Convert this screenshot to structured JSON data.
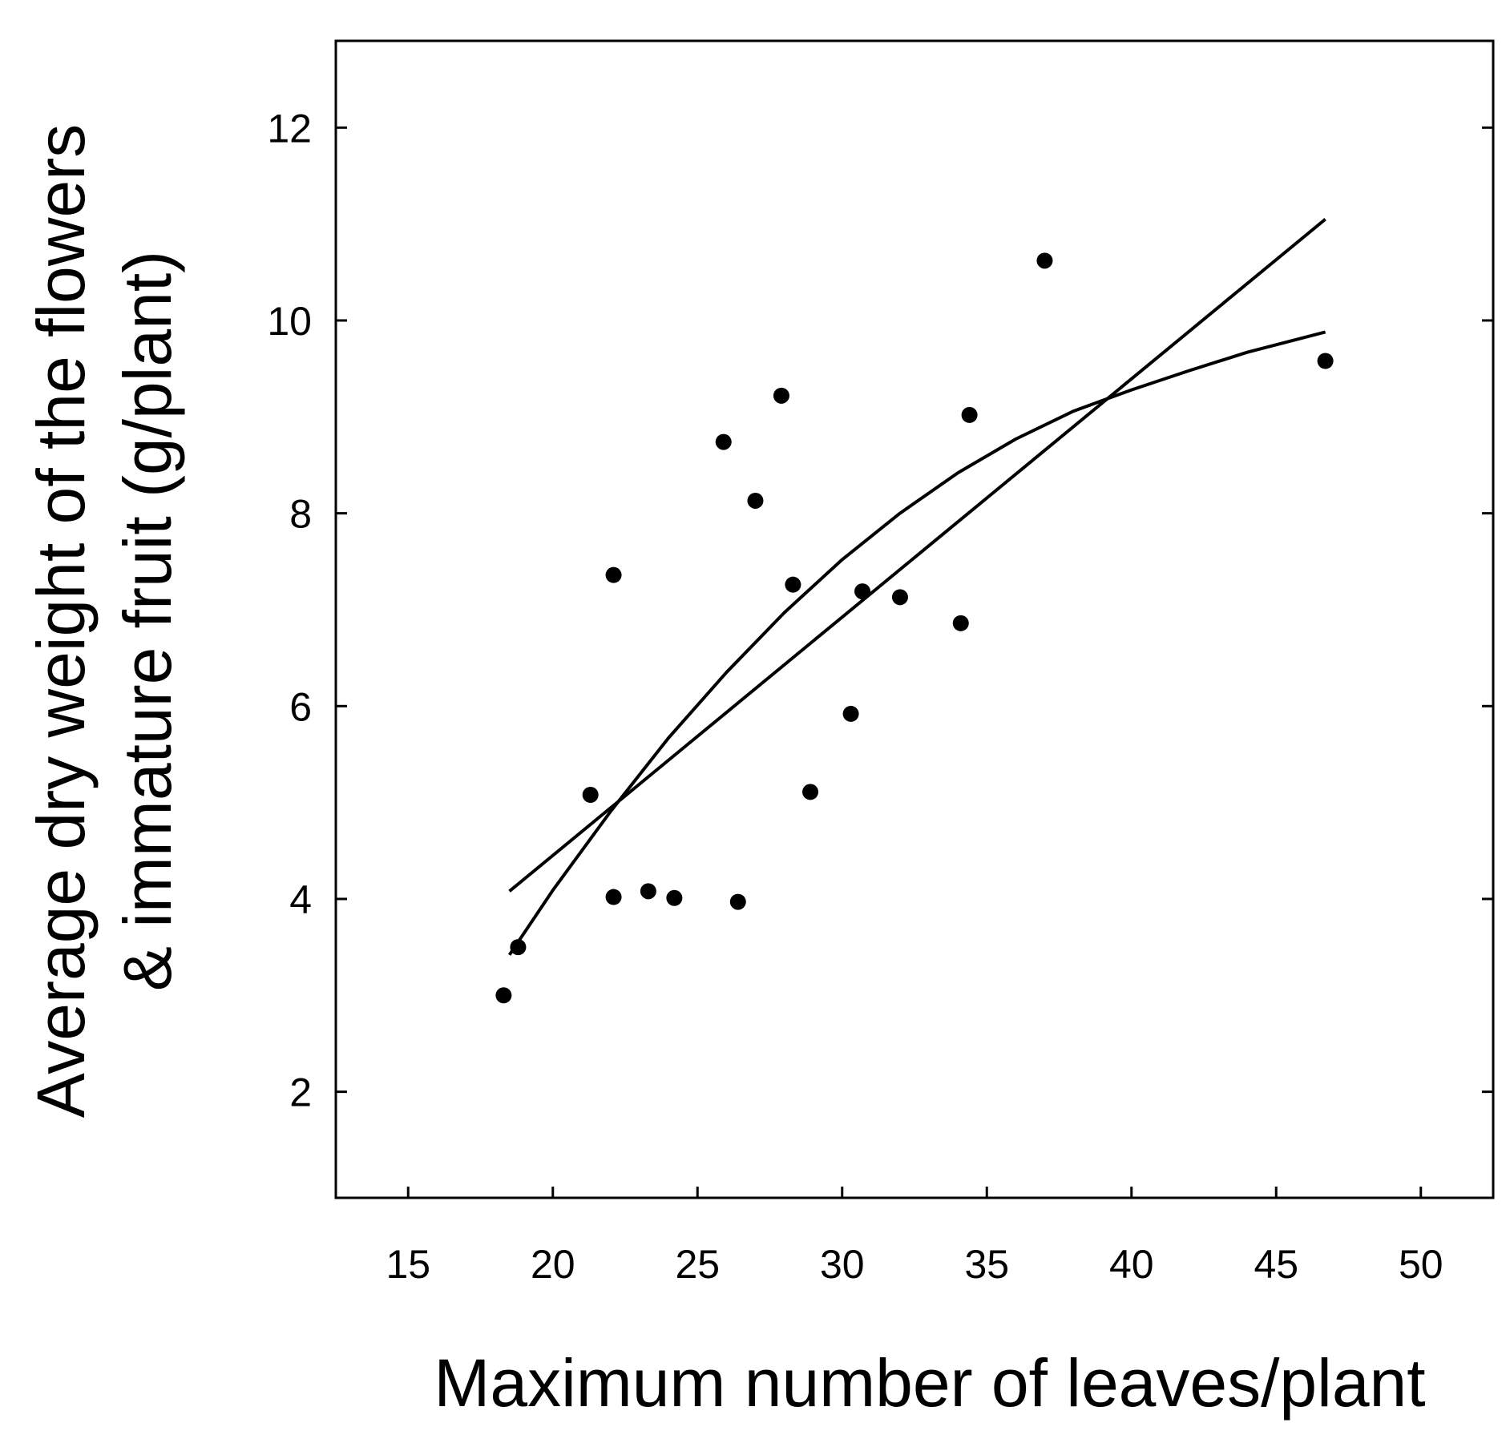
{
  "chart_data": {
    "type": "scatter",
    "title": "",
    "xlabel": "Maximum number of leaves/plant",
    "ylabel_lines": [
      "Average dry weight of the flowers",
      "& immature fruit (g/plant)"
    ],
    "xlim": [
      12.5,
      52.5
    ],
    "ylim": [
      0.9,
      12.9
    ],
    "xticks": [
      15,
      20,
      25,
      30,
      35,
      40,
      45,
      50
    ],
    "yticks": [
      2,
      4,
      6,
      8,
      10,
      12
    ],
    "grid": false,
    "legend": "none",
    "colors": {
      "marker": "#000000",
      "line": "#000000",
      "axis": "#000000"
    },
    "points": [
      {
        "x": 18.3,
        "y": 3.0
      },
      {
        "x": 18.8,
        "y": 3.5
      },
      {
        "x": 21.3,
        "y": 5.08
      },
      {
        "x": 22.1,
        "y": 7.36
      },
      {
        "x": 22.1,
        "y": 4.02
      },
      {
        "x": 23.3,
        "y": 4.08
      },
      {
        "x": 24.2,
        "y": 4.01
      },
      {
        "x": 25.9,
        "y": 8.74
      },
      {
        "x": 26.4,
        "y": 3.97
      },
      {
        "x": 27.0,
        "y": 8.13
      },
      {
        "x": 27.9,
        "y": 9.22
      },
      {
        "x": 28.3,
        "y": 7.26
      },
      {
        "x": 28.9,
        "y": 5.11
      },
      {
        "x": 30.3,
        "y": 5.92
      },
      {
        "x": 30.7,
        "y": 7.19
      },
      {
        "x": 32.0,
        "y": 7.13
      },
      {
        "x": 34.1,
        "y": 6.86
      },
      {
        "x": 34.4,
        "y": 9.02
      },
      {
        "x": 37.0,
        "y": 10.62
      },
      {
        "x": 46.7,
        "y": 9.58
      }
    ],
    "series": [
      {
        "type": "line",
        "x": [
          18.5,
          46.7
        ],
        "y": [
          4.08,
          11.05
        ]
      },
      {
        "type": "curve",
        "x": [
          18.5,
          20,
          22,
          24,
          26,
          28,
          30,
          32,
          34,
          36,
          38,
          40,
          42,
          44,
          46.7
        ],
        "y": [
          3.42,
          4.09,
          4.91,
          5.67,
          6.35,
          6.97,
          7.52,
          8.0,
          8.42,
          8.77,
          9.06,
          9.28,
          9.48,
          9.67,
          9.88
        ]
      }
    ]
  }
}
